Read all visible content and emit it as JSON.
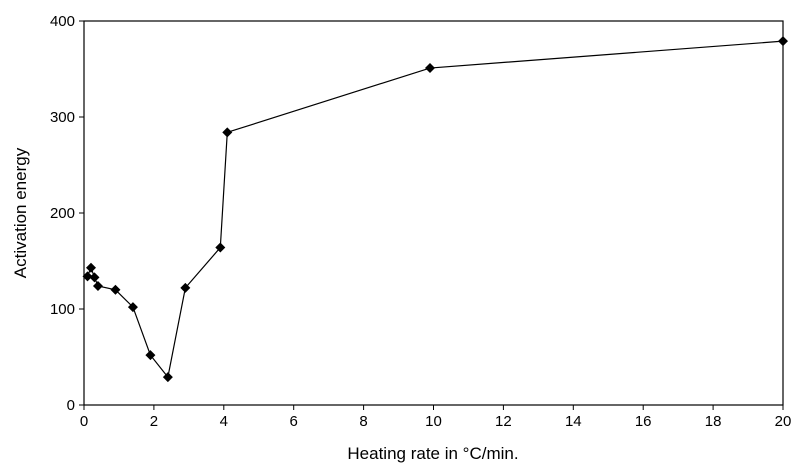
{
  "chart_data": {
    "type": "line",
    "x_label": "Heating rate in °C/min.",
    "y_label": "Activation energy",
    "x": [
      0.1,
      0.2,
      0.3,
      0.4,
      0.9,
      1.4,
      1.9,
      2.4,
      2.9,
      3.9,
      4.1,
      9.9,
      20
    ],
    "series": [
      {
        "name": "Activation energy",
        "color": "#000000",
        "values": [
          134,
          143,
          133,
          124,
          120,
          102,
          52,
          29,
          122,
          164,
          284,
          351,
          379
        ]
      }
    ],
    "xlim": [
      0,
      20
    ],
    "xticks": [
      0,
      2,
      4,
      6,
      8,
      10,
      12,
      14,
      16,
      18,
      20
    ],
    "ylim": [
      0,
      400
    ],
    "yticks": [
      0,
      100,
      200,
      300,
      400
    ]
  }
}
